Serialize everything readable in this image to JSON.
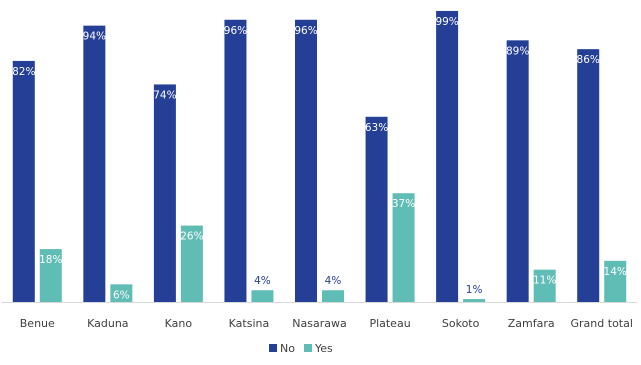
{
  "chart_data": {
    "type": "bar",
    "categories": [
      "Benue",
      "Kaduna",
      "Kano",
      "Katsina",
      "Nasarawa",
      "Plateau",
      "Sokoto",
      "Zamfara",
      "Grand total"
    ],
    "series": [
      {
        "name": "No",
        "values": [
          82,
          94,
          74,
          96,
          96,
          63,
          99,
          89,
          86
        ],
        "labels": [
          "82%",
          "94%",
          "74%",
          "96%",
          "96%",
          "63%",
          "99%",
          "89%",
          "86%"
        ],
        "color": "#253e96"
      },
      {
        "name": "Yes",
        "values": [
          18,
          6,
          26,
          4,
          4,
          37,
          1,
          11,
          14
        ],
        "labels": [
          "18%",
          "6%",
          "26%",
          "4%",
          "4%",
          "37%",
          "1%",
          "11%",
          "14%"
        ],
        "color": "#5fbdb5"
      }
    ],
    "ylim": [
      0,
      100
    ],
    "unit": "%",
    "legend_position": "bottom",
    "grid": false,
    "title": "",
    "xlabel": "",
    "ylabel": ""
  }
}
